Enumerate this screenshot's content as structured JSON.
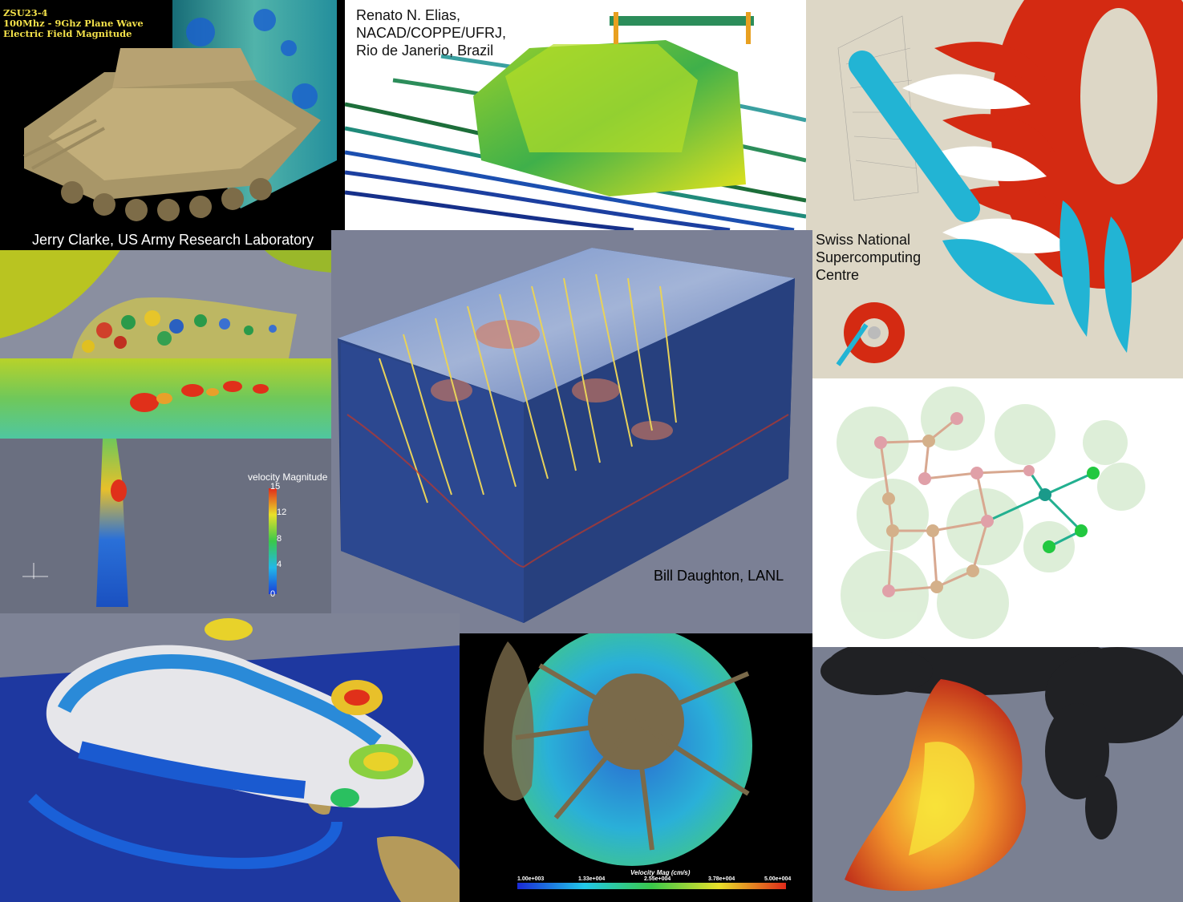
{
  "tank_panel": {
    "title_lines": [
      "ZSU23-4",
      "100Mhz - 9Ghz Plane Wave",
      "Electric Field Magnitude"
    ],
    "credit": "Jerry Clarke, US Army Research Laboratory"
  },
  "car_panel": {
    "credit_lines": [
      "Renato N. Elias,",
      "NACAD/COPPE/UFRJ,",
      "Rio de Janerio, Brazil"
    ]
  },
  "turbine_panel": {
    "credit_lines": [
      "Swiss National",
      "Supercomputing",
      "Centre"
    ]
  },
  "magnetic_box_panel": {
    "credit": "Bill Daughton, LANL"
  },
  "channel_panel": {
    "colorbar_title": "velocity Magnitude",
    "colorbar_ticks": [
      "15",
      "12",
      "8",
      "4",
      "0"
    ]
  },
  "asteroid_panel": {
    "colorbar_title": "Velocity Mag (cm/s)",
    "colorbar_ticks": [
      "1.00e+003",
      "1.33e+004",
      "2.55e+004",
      "3.78e+004",
      "5.00e+004"
    ]
  },
  "colors": {
    "background": "#6a6f80",
    "tank_title": "#f3e14a",
    "turbine_red": "#d42a12",
    "turbine_cyan": "#22b4d4"
  }
}
